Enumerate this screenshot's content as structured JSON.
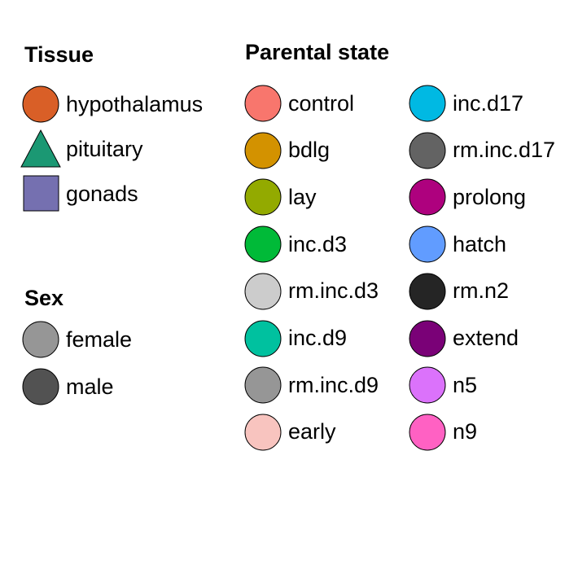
{
  "legends": {
    "tissue": {
      "title": "Tissue",
      "items": [
        {
          "label": "hypothalamus",
          "color": "#d95f27",
          "shape": "circle"
        },
        {
          "label": "pituitary",
          "color": "#1b9873",
          "shape": "triangle"
        },
        {
          "label": "gonads",
          "color": "#7570b0",
          "shape": "square"
        }
      ]
    },
    "sex": {
      "title": "Sex",
      "items": [
        {
          "label": "female",
          "color": "#969696",
          "shape": "circle"
        },
        {
          "label": "male",
          "color": "#525252",
          "shape": "circle"
        }
      ]
    },
    "parental": {
      "title": "Parental state",
      "col1": [
        {
          "label": "control",
          "color": "#f8766d",
          "shape": "circle"
        },
        {
          "label": "bdlg",
          "color": "#d39200",
          "shape": "circle"
        },
        {
          "label": "lay",
          "color": "#93aa00",
          "shape": "circle"
        },
        {
          "label": "inc.d3",
          "color": "#00ba38",
          "shape": "circle"
        },
        {
          "label": "rm.inc.d3",
          "color": "#cccccc",
          "shape": "circle"
        },
        {
          "label": "inc.d9",
          "color": "#00c19f",
          "shape": "circle"
        },
        {
          "label": "rm.inc.d9",
          "color": "#969696",
          "shape": "circle"
        },
        {
          "label": "early",
          "color": "#f8c4bf",
          "shape": "circle"
        }
      ],
      "col2": [
        {
          "label": "inc.d17",
          "color": "#00b9e3",
          "shape": "circle"
        },
        {
          "label": "rm.inc.d17",
          "color": "#636363",
          "shape": "circle"
        },
        {
          "label": "prolong",
          "color": "#ae017e",
          "shape": "circle"
        },
        {
          "label": "hatch",
          "color": "#619cff",
          "shape": "circle"
        },
        {
          "label": "rm.n2",
          "color": "#252525",
          "shape": "circle"
        },
        {
          "label": "extend",
          "color": "#7a0177",
          "shape": "circle"
        },
        {
          "label": "n5",
          "color": "#db72fb",
          "shape": "circle"
        },
        {
          "label": "n9",
          "color": "#ff61c3",
          "shape": "circle"
        }
      ]
    }
  }
}
